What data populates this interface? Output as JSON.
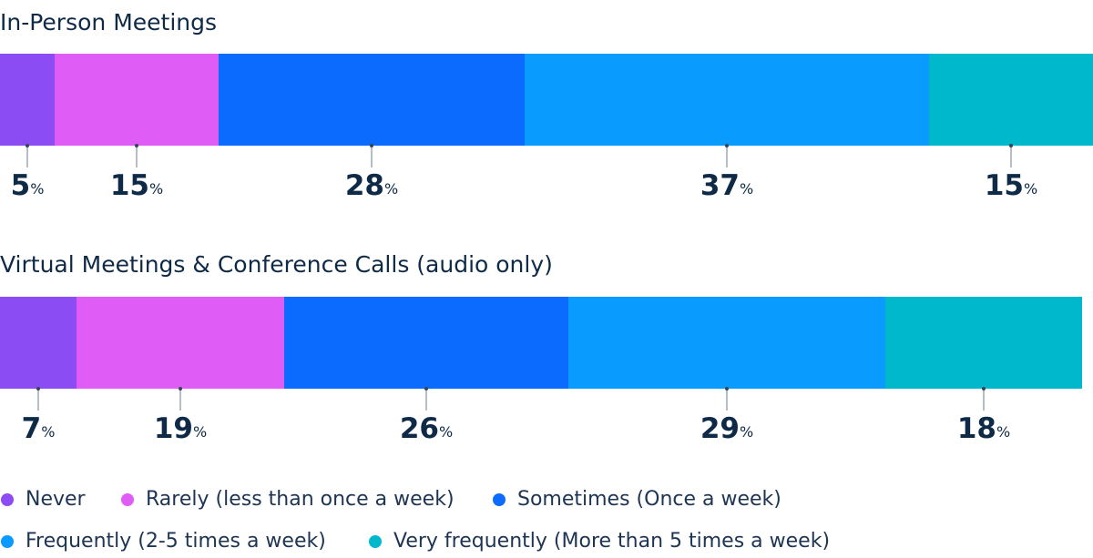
{
  "chart_data": {
    "type": "stacked-bar-100",
    "categories": [
      "In-Person Meetings",
      "Virtual Meetings & Conference Calls (audio only)"
    ],
    "xlim": [
      0,
      100
    ],
    "series": [
      {
        "name": "Never",
        "color": "#8b4cf4",
        "values": [
          5,
          7
        ],
        "value_labels": [
          "5%",
          "7%"
        ]
      },
      {
        "name": "Rarely (less than once a week)",
        "color": "#e05cf6",
        "values": [
          15,
          19
        ],
        "value_labels": [
          "15%",
          "19%"
        ]
      },
      {
        "name": "Sometimes (Once a week)",
        "color": "#0b6bff",
        "values": [
          28,
          26
        ],
        "value_labels": [
          "28%",
          "26%"
        ]
      },
      {
        "name": "Frequently (2-5 times a week)",
        "color": "#0a9bff",
        "values": [
          37,
          29
        ],
        "value_labels": [
          "37%",
          "29%"
        ]
      },
      {
        "name": "Very frequently (More than 5 times a week)",
        "color": "#00b8cc",
        "values": [
          15,
          18
        ],
        "value_labels": [
          "15%",
          "18%"
        ]
      }
    ]
  }
}
